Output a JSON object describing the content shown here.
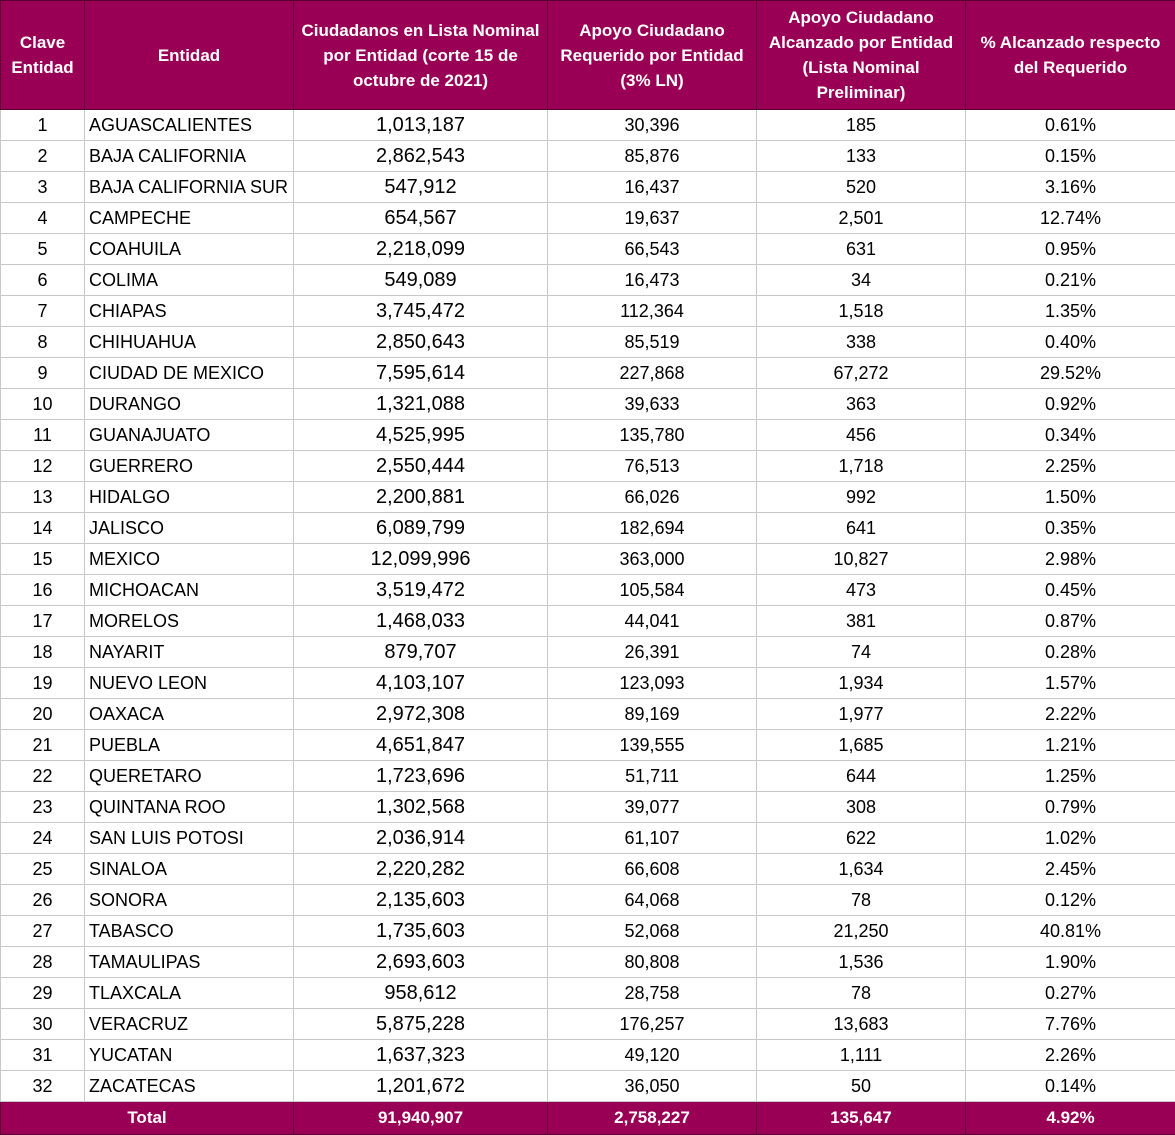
{
  "header": {
    "clave": "Clave Entidad",
    "entidad": "Entidad",
    "lista_nominal": "Ciudadanos en Lista Nominal por Entidad (corte 15 de octubre de 2021)",
    "requerido": "Apoyo Ciudadano Requerido por Entidad (3% LN)",
    "alcanzado": "Apoyo Ciudadano Alcanzado por Entidad (Lista Nominal Preliminar)",
    "porcentaje": "% Alcanzado respecto del Requerido"
  },
  "rows": [
    [
      "1",
      "AGUASCALIENTES",
      "1,013,187",
      "30,396",
      "185",
      "0.61%"
    ],
    [
      "2",
      "BAJA CALIFORNIA",
      "2,862,543",
      "85,876",
      "133",
      "0.15%"
    ],
    [
      "3",
      "BAJA CALIFORNIA SUR",
      "547,912",
      "16,437",
      "520",
      "3.16%"
    ],
    [
      "4",
      "CAMPECHE",
      "654,567",
      "19,637",
      "2,501",
      "12.74%"
    ],
    [
      "5",
      "COAHUILA",
      "2,218,099",
      "66,543",
      "631",
      "0.95%"
    ],
    [
      "6",
      "COLIMA",
      "549,089",
      "16,473",
      "34",
      "0.21%"
    ],
    [
      "7",
      "CHIAPAS",
      "3,745,472",
      "112,364",
      "1,518",
      "1.35%"
    ],
    [
      "8",
      "CHIHUAHUA",
      "2,850,643",
      "85,519",
      "338",
      "0.40%"
    ],
    [
      "9",
      "CIUDAD DE MEXICO",
      "7,595,614",
      "227,868",
      "67,272",
      "29.52%"
    ],
    [
      "10",
      "DURANGO",
      "1,321,088",
      "39,633",
      "363",
      "0.92%"
    ],
    [
      "11",
      "GUANAJUATO",
      "4,525,995",
      "135,780",
      "456",
      "0.34%"
    ],
    [
      "12",
      "GUERRERO",
      "2,550,444",
      "76,513",
      "1,718",
      "2.25%"
    ],
    [
      "13",
      "HIDALGO",
      "2,200,881",
      "66,026",
      "992",
      "1.50%"
    ],
    [
      "14",
      "JALISCO",
      "6,089,799",
      "182,694",
      "641",
      "0.35%"
    ],
    [
      "15",
      "MEXICO",
      "12,099,996",
      "363,000",
      "10,827",
      "2.98%"
    ],
    [
      "16",
      "MICHOACAN",
      "3,519,472",
      "105,584",
      "473",
      "0.45%"
    ],
    [
      "17",
      "MORELOS",
      "1,468,033",
      "44,041",
      "381",
      "0.87%"
    ],
    [
      "18",
      "NAYARIT",
      "879,707",
      "26,391",
      "74",
      "0.28%"
    ],
    [
      "19",
      "NUEVO LEON",
      "4,103,107",
      "123,093",
      "1,934",
      "1.57%"
    ],
    [
      "20",
      "OAXACA",
      "2,972,308",
      "89,169",
      "1,977",
      "2.22%"
    ],
    [
      "21",
      "PUEBLA",
      "4,651,847",
      "139,555",
      "1,685",
      "1.21%"
    ],
    [
      "22",
      "QUERETARO",
      "1,723,696",
      "51,711",
      "644",
      "1.25%"
    ],
    [
      "23",
      "QUINTANA ROO",
      "1,302,568",
      "39,077",
      "308",
      "0.79%"
    ],
    [
      "24",
      "SAN LUIS POTOSI",
      "2,036,914",
      "61,107",
      "622",
      "1.02%"
    ],
    [
      "25",
      "SINALOA",
      "2,220,282",
      "66,608",
      "1,634",
      "2.45%"
    ],
    [
      "26",
      "SONORA",
      "2,135,603",
      "64,068",
      "78",
      "0.12%"
    ],
    [
      "27",
      "TABASCO",
      "1,735,603",
      "52,068",
      "21,250",
      "40.81%"
    ],
    [
      "28",
      "TAMAULIPAS",
      "2,693,603",
      "80,808",
      "1,536",
      "1.90%"
    ],
    [
      "29",
      "TLAXCALA",
      "958,612",
      "28,758",
      "78",
      "0.27%"
    ],
    [
      "30",
      "VERACRUZ",
      "5,875,228",
      "176,257",
      "13,683",
      "7.76%"
    ],
    [
      "31",
      "YUCATAN",
      "1,637,323",
      "49,120",
      "1,111",
      "2.26%"
    ],
    [
      "32",
      "ZACATECAS",
      "1,201,672",
      "36,050",
      "50",
      "0.14%"
    ]
  ],
  "total": {
    "label": "Total",
    "lista_nominal": "91,940,907",
    "requerido": "2,758,227",
    "alcanzado": "135,647",
    "porcentaje": "4.92%"
  },
  "colors": {
    "header_bg": "#990055",
    "header_text": "#ffffff"
  }
}
